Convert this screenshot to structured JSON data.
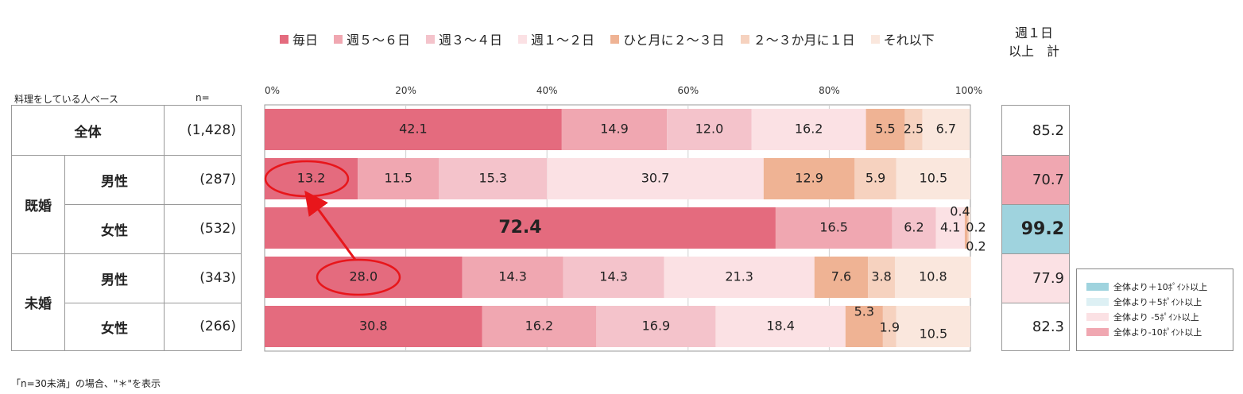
{
  "base_label": "料理をしている人ベース",
  "n_label": "n=",
  "total_header": [
    "週１日",
    "以上　計"
  ],
  "footnote": "「n=30未満」の場合、\"＊\"を表示",
  "legend": [
    {
      "name": "毎日",
      "color": "#e46b7e"
    },
    {
      "name": "週５～６日",
      "color": "#f0a7b1"
    },
    {
      "name": "週３～４日",
      "color": "#f4c3cb"
    },
    {
      "name": "週１～２日",
      "color": "#fbe1e4"
    },
    {
      "name": "ひと月に２～３日",
      "color": "#efb394"
    },
    {
      "name": "２～３か月に１日",
      "color": "#f6d2bf"
    },
    {
      "name": "それ以下",
      "color": "#fae7dd"
    }
  ],
  "rows": [
    {
      "group": "",
      "sub": "全体",
      "n": "(1,428)",
      "total": "85.2",
      "highlight": ""
    },
    {
      "group": "既婚",
      "sub": "男性",
      "n": "(287)",
      "total": "70.7",
      "highlight": "minus10"
    },
    {
      "group": "",
      "sub": "女性",
      "n": "(532)",
      "total": "99.2",
      "highlight": "plus10"
    },
    {
      "group": "未婚",
      "sub": "男性",
      "n": "(343)",
      "total": "77.9",
      "highlight": "minus5"
    },
    {
      "group": "",
      "sub": "女性",
      "n": "(266)",
      "total": "82.3",
      "highlight": ""
    }
  ],
  "groups": {
    "married": "既婚",
    "single": "未婚"
  },
  "highlight_legend": [
    {
      "label": "全体より＋10ﾎﾟｲﾝﾄ以上",
      "color": "#9fd3de"
    },
    {
      "label": "全体より＋5ﾎﾟｲﾝﾄ以上",
      "color": "#ddf0f4"
    },
    {
      "label": "全体より -5ﾎﾟｲﾝﾄ以上",
      "color": "#fbe1e4"
    },
    {
      "label": "全体より-10ﾎﾟｲﾝﾄ以上",
      "color": "#f0a7b1"
    }
  ],
  "chart_data": {
    "type": "bar",
    "orientation": "horizontal",
    "stacked": true,
    "x_ticks": [
      "0%",
      "20%",
      "40%",
      "60%",
      "80%",
      "100%"
    ],
    "xlim": [
      0,
      100
    ],
    "grid": true,
    "categories": [
      "全体",
      "既婚 男性",
      "既婚 女性",
      "未婚 男性",
      "未婚 女性"
    ],
    "series": [
      {
        "name": "毎日",
        "values": [
          42.1,
          13.2,
          72.4,
          28.0,
          30.8
        ]
      },
      {
        "name": "週５～６日",
        "values": [
          14.9,
          11.5,
          16.5,
          14.3,
          16.2
        ]
      },
      {
        "name": "週３～４日",
        "values": [
          12.0,
          15.3,
          6.2,
          14.3,
          16.9
        ]
      },
      {
        "name": "週１～２日",
        "values": [
          16.2,
          30.7,
          4.1,
          21.3,
          18.4
        ]
      },
      {
        "name": "ひと月に２～３日",
        "values": [
          5.5,
          12.9,
          0.4,
          7.6,
          5.3
        ]
      },
      {
        "name": "２～３か月に１日",
        "values": [
          2.5,
          5.9,
          0.2,
          3.8,
          1.9
        ]
      },
      {
        "name": "それ以下",
        "values": [
          6.7,
          10.5,
          0.2,
          10.8,
          10.5
        ]
      }
    ],
    "labels": [
      [
        "42.1",
        "14.9",
        "12.0",
        "16.2",
        "5.5",
        "2.5",
        "6.7"
      ],
      [
        "13.2",
        "11.5",
        "15.3",
        "30.7",
        "12.9",
        "5.9",
        "10.5"
      ],
      [
        "72.4",
        "16.5",
        "6.2",
        "4.1",
        "0.4",
        "0.2",
        "0.2"
      ],
      [
        "28.0",
        "14.3",
        "14.3",
        "21.3",
        "7.6",
        "3.8",
        "10.8"
      ],
      [
        "30.8",
        "16.2",
        "16.9",
        "18.4",
        "5.3",
        "1.9",
        "10.5"
      ]
    ],
    "annotation": {
      "type": "arrow",
      "from": "未婚 男性 毎日",
      "to": "既婚 男性 毎日"
    }
  }
}
